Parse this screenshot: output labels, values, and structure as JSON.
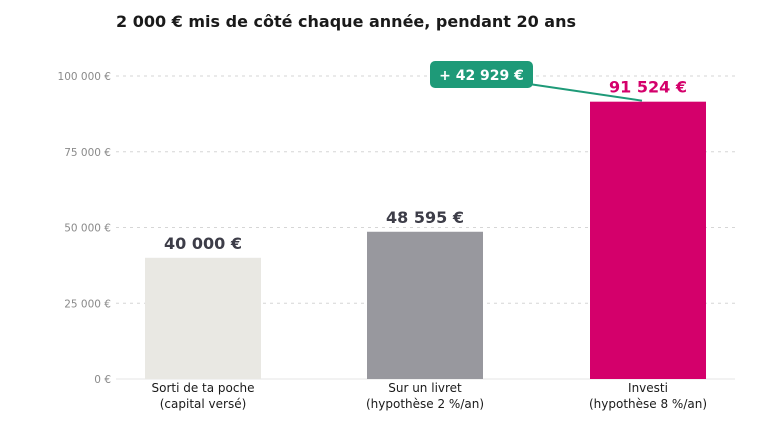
{
  "chart_data": {
    "type": "bar",
    "title": "2 000 € mis de côté chaque année, pendant 20 ans",
    "categories": [
      [
        "Sorti de ta poche",
        "(capital versé)"
      ],
      [
        "Sur un livret",
        "(hypothèse 2 %/an)"
      ],
      [
        "Investi",
        "(hypothèse 8 %/an)"
      ]
    ],
    "values": [
      40000,
      48595,
      91524
    ],
    "value_labels": [
      "40 000 €",
      "48 595 €",
      "91 524 €"
    ],
    "bar_colors": [
      "#e9e8e3",
      "#98989e",
      "#d4006b"
    ],
    "value_label_colors": [
      "#3d3d48",
      "#3d3d48",
      "#d4006b"
    ],
    "ylim": [
      0,
      100000
    ],
    "yticks": [
      0,
      25000,
      50000,
      75000,
      100000
    ],
    "ytick_labels": [
      "0 €",
      "25 000 €",
      "50 000 €",
      "75 000 €",
      "100 000 €"
    ],
    "grid": "horizontal dashed",
    "annotation": {
      "text": "+ 42 929 €",
      "color": "#1e9a78",
      "points_to": 2
    }
  }
}
